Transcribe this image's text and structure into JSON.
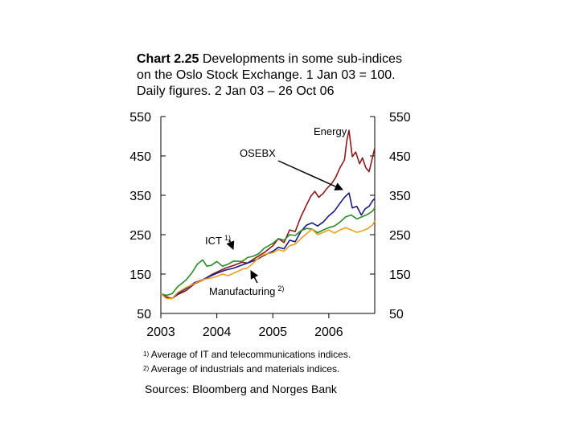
{
  "title_prefix": "Chart 2.25",
  "title_rest": " Developments in some sub-indices on the Oslo Stock Exchange. 1 Jan 03 = 100. Daily figures. 2 Jan 03 – 26 Oct 06",
  "footnote1": {
    "marker": "1)",
    "text": "Average of  IT and telecommunications indices."
  },
  "footnote2": {
    "marker": "2)",
    "text": "Average of  industrials and materials indices."
  },
  "sources": "Sources: Bloomberg and Norges Bank",
  "chart_data": {
    "type": "line",
    "title": "Developments in some sub-indices on the Oslo Stock Exchange. 1 Jan 03 = 100. Daily figures. 2 Jan 03 – 26 Oct 06",
    "x_range": [
      2003.0,
      2006.82
    ],
    "x_ticks": [
      "2003",
      "2004",
      "2005",
      "2006"
    ],
    "y_ticks": [
      "50",
      "150",
      "250",
      "350",
      "450",
      "550"
    ],
    "ylim": [
      50,
      550
    ],
    "annotations": [
      {
        "label": "Energy",
        "series": "Energy"
      },
      {
        "label": "OSEBX",
        "series": "OSEBX"
      },
      {
        "label": "ICT",
        "superscript": "1)",
        "series": "ICT"
      },
      {
        "label": "Manufacturing",
        "superscript": "2)",
        "series": "Manufacturing"
      }
    ],
    "series": [
      {
        "name": "Energy",
        "color": "#8b1a1a",
        "points": [
          [
            2003.0,
            100
          ],
          [
            2003.1,
            92
          ],
          [
            2003.2,
            88
          ],
          [
            2003.3,
            98
          ],
          [
            2003.45,
            108
          ],
          [
            2003.6,
            125
          ],
          [
            2003.75,
            135
          ],
          [
            2003.9,
            148
          ],
          [
            2004.0,
            155
          ],
          [
            2004.15,
            165
          ],
          [
            2004.3,
            172
          ],
          [
            2004.45,
            180
          ],
          [
            2004.55,
            178
          ],
          [
            2004.7,
            192
          ],
          [
            2004.85,
            205
          ],
          [
            2005.0,
            222
          ],
          [
            2005.1,
            240
          ],
          [
            2005.2,
            230
          ],
          [
            2005.3,
            262
          ],
          [
            2005.4,
            258
          ],
          [
            2005.5,
            295
          ],
          [
            2005.6,
            325
          ],
          [
            2005.68,
            348
          ],
          [
            2005.75,
            360
          ],
          [
            2005.82,
            345
          ],
          [
            2005.9,
            355
          ],
          [
            2005.97,
            368
          ],
          [
            2006.05,
            380
          ],
          [
            2006.12,
            395
          ],
          [
            2006.2,
            420
          ],
          [
            2006.28,
            440
          ],
          [
            2006.32,
            488
          ],
          [
            2006.36,
            515
          ],
          [
            2006.42,
            448
          ],
          [
            2006.48,
            460
          ],
          [
            2006.55,
            430
          ],
          [
            2006.6,
            445
          ],
          [
            2006.66,
            420
          ],
          [
            2006.72,
            410
          ],
          [
            2006.77,
            440
          ],
          [
            2006.82,
            470
          ]
        ]
      },
      {
        "name": "OSEBX",
        "color": "#1a1a80",
        "points": [
          [
            2003.0,
            100
          ],
          [
            2003.1,
            90
          ],
          [
            2003.2,
            88
          ],
          [
            2003.3,
            100
          ],
          [
            2003.45,
            113
          ],
          [
            2003.6,
            128
          ],
          [
            2003.75,
            136
          ],
          [
            2003.9,
            146
          ],
          [
            2004.0,
            152
          ],
          [
            2004.15,
            160
          ],
          [
            2004.3,
            165
          ],
          [
            2004.45,
            173
          ],
          [
            2004.55,
            178
          ],
          [
            2004.7,
            186
          ],
          [
            2004.85,
            198
          ],
          [
            2005.0,
            208
          ],
          [
            2005.1,
            218
          ],
          [
            2005.2,
            214
          ],
          [
            2005.3,
            236
          ],
          [
            2005.4,
            232
          ],
          [
            2005.5,
            258
          ],
          [
            2005.6,
            274
          ],
          [
            2005.7,
            280
          ],
          [
            2005.8,
            272
          ],
          [
            2005.9,
            282
          ],
          [
            2006.0,
            298
          ],
          [
            2006.1,
            310
          ],
          [
            2006.2,
            330
          ],
          [
            2006.28,
            345
          ],
          [
            2006.36,
            356
          ],
          [
            2006.42,
            318
          ],
          [
            2006.5,
            322
          ],
          [
            2006.58,
            300
          ],
          [
            2006.65,
            316
          ],
          [
            2006.72,
            322
          ],
          [
            2006.78,
            336
          ],
          [
            2006.82,
            342
          ]
        ]
      },
      {
        "name": "ICT",
        "color": "#2a8a2a",
        "points": [
          [
            2003.0,
            100
          ],
          [
            2003.1,
            96
          ],
          [
            2003.2,
            100
          ],
          [
            2003.3,
            118
          ],
          [
            2003.45,
            135
          ],
          [
            2003.55,
            152
          ],
          [
            2003.65,
            175
          ],
          [
            2003.75,
            186
          ],
          [
            2003.82,
            170
          ],
          [
            2003.9,
            172
          ],
          [
            2004.0,
            182
          ],
          [
            2004.1,
            170
          ],
          [
            2004.2,
            175
          ],
          [
            2004.3,
            183
          ],
          [
            2004.45,
            182
          ],
          [
            2004.55,
            192
          ],
          [
            2004.65,
            195
          ],
          [
            2004.75,
            202
          ],
          [
            2004.85,
            216
          ],
          [
            2005.0,
            228
          ],
          [
            2005.1,
            240
          ],
          [
            2005.2,
            236
          ],
          [
            2005.3,
            250
          ],
          [
            2005.4,
            248
          ],
          [
            2005.5,
            260
          ],
          [
            2005.6,
            266
          ],
          [
            2005.7,
            264
          ],
          [
            2005.8,
            255
          ],
          [
            2005.9,
            262
          ],
          [
            2006.0,
            268
          ],
          [
            2006.1,
            272
          ],
          [
            2006.2,
            282
          ],
          [
            2006.3,
            295
          ],
          [
            2006.4,
            300
          ],
          [
            2006.5,
            290
          ],
          [
            2006.6,
            296
          ],
          [
            2006.7,
            302
          ],
          [
            2006.78,
            310
          ],
          [
            2006.82,
            318
          ]
        ]
      },
      {
        "name": "Manufacturing",
        "color": "#e8a020",
        "points": [
          [
            2003.0,
            100
          ],
          [
            2003.1,
            88
          ],
          [
            2003.2,
            88
          ],
          [
            2003.3,
            103
          ],
          [
            2003.45,
            116
          ],
          [
            2003.6,
            126
          ],
          [
            2003.75,
            136
          ],
          [
            2003.9,
            140
          ],
          [
            2004.0,
            144
          ],
          [
            2004.1,
            150
          ],
          [
            2004.2,
            146
          ],
          [
            2004.3,
            152
          ],
          [
            2004.45,
            162
          ],
          [
            2004.55,
            166
          ],
          [
            2004.65,
            178
          ],
          [
            2004.75,
            192
          ],
          [
            2004.85,
            200
          ],
          [
            2005.0,
            204
          ],
          [
            2005.1,
            212
          ],
          [
            2005.2,
            208
          ],
          [
            2005.3,
            222
          ],
          [
            2005.4,
            226
          ],
          [
            2005.5,
            240
          ],
          [
            2005.6,
            252
          ],
          [
            2005.7,
            264
          ],
          [
            2005.8,
            250
          ],
          [
            2005.9,
            256
          ],
          [
            2006.0,
            262
          ],
          [
            2006.1,
            254
          ],
          [
            2006.2,
            262
          ],
          [
            2006.3,
            268
          ],
          [
            2006.4,
            262
          ],
          [
            2006.5,
            256
          ],
          [
            2006.6,
            260
          ],
          [
            2006.7,
            266
          ],
          [
            2006.78,
            274
          ],
          [
            2006.82,
            285
          ]
        ]
      }
    ]
  }
}
